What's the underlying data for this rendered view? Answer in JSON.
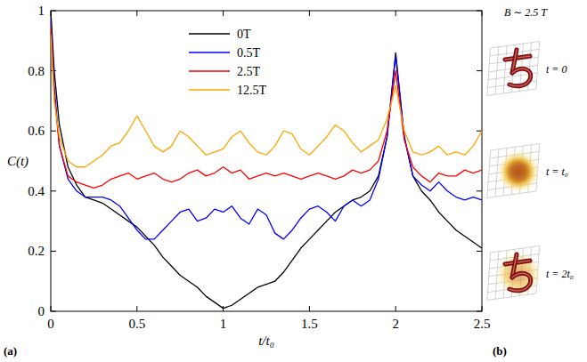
{
  "chart_data": {
    "type": "line",
    "x_label": "t/t₀",
    "y_label": "C(t)",
    "xlim": [
      0,
      2.5
    ],
    "ylim": [
      0,
      1
    ],
    "xticks": [
      0,
      0.5,
      1,
      1.5,
      2,
      2.5
    ],
    "yticks": [
      0,
      0.2,
      0.4,
      0.6,
      0.8,
      1
    ],
    "legend": "top",
    "x": [
      0,
      0.02,
      0.05,
      0.1,
      0.15,
      0.2,
      0.25,
      0.3,
      0.35,
      0.4,
      0.45,
      0.5,
      0.55,
      0.6,
      0.65,
      0.7,
      0.75,
      0.8,
      0.85,
      0.9,
      0.95,
      1.0,
      1.05,
      1.1,
      1.15,
      1.2,
      1.25,
      1.3,
      1.35,
      1.4,
      1.45,
      1.5,
      1.55,
      1.6,
      1.65,
      1.7,
      1.75,
      1.8,
      1.85,
      1.9,
      1.95,
      2.0,
      2.05,
      2.1,
      2.15,
      2.2,
      2.25,
      2.3,
      2.35,
      2.4,
      2.45,
      2.5
    ],
    "series": [
      {
        "name": "0T",
        "color": "#000000",
        "values": [
          1.0,
          0.8,
          0.62,
          0.48,
          0.42,
          0.38,
          0.37,
          0.36,
          0.34,
          0.32,
          0.3,
          0.28,
          0.25,
          0.22,
          0.18,
          0.15,
          0.12,
          0.1,
          0.08,
          0.05,
          0.03,
          0.01,
          0.02,
          0.04,
          0.06,
          0.08,
          0.09,
          0.1,
          0.13,
          0.17,
          0.21,
          0.24,
          0.27,
          0.3,
          0.33,
          0.35,
          0.37,
          0.38,
          0.4,
          0.45,
          0.58,
          0.86,
          0.58,
          0.45,
          0.4,
          0.37,
          0.33,
          0.3,
          0.27,
          0.25,
          0.23,
          0.21
        ]
      },
      {
        "name": "0.5T",
        "color": "#0000ff",
        "values": [
          0.97,
          0.75,
          0.55,
          0.44,
          0.4,
          0.38,
          0.38,
          0.38,
          0.37,
          0.35,
          0.31,
          0.27,
          0.24,
          0.24,
          0.27,
          0.3,
          0.33,
          0.34,
          0.3,
          0.31,
          0.34,
          0.33,
          0.35,
          0.31,
          0.29,
          0.34,
          0.32,
          0.26,
          0.24,
          0.27,
          0.31,
          0.34,
          0.35,
          0.33,
          0.3,
          0.35,
          0.37,
          0.35,
          0.37,
          0.44,
          0.58,
          0.85,
          0.58,
          0.45,
          0.42,
          0.4,
          0.43,
          0.4,
          0.38,
          0.37,
          0.38,
          0.37
        ]
      },
      {
        "name": "2.5T",
        "color": "#ff0000",
        "values": [
          0.95,
          0.72,
          0.55,
          0.45,
          0.43,
          0.42,
          0.41,
          0.42,
          0.44,
          0.45,
          0.46,
          0.44,
          0.45,
          0.46,
          0.44,
          0.43,
          0.44,
          0.46,
          0.47,
          0.45,
          0.46,
          0.48,
          0.46,
          0.47,
          0.44,
          0.45,
          0.46,
          0.45,
          0.46,
          0.45,
          0.44,
          0.45,
          0.46,
          0.45,
          0.44,
          0.45,
          0.47,
          0.46,
          0.47,
          0.5,
          0.6,
          0.8,
          0.57,
          0.48,
          0.45,
          0.43,
          0.46,
          0.45,
          0.45,
          0.47,
          0.46,
          0.47
        ]
      },
      {
        "name": "12.5T",
        "color": "#ffa500",
        "values": [
          0.92,
          0.7,
          0.58,
          0.5,
          0.48,
          0.48,
          0.5,
          0.52,
          0.55,
          0.56,
          0.6,
          0.65,
          0.6,
          0.55,
          0.53,
          0.55,
          0.6,
          0.58,
          0.55,
          0.52,
          0.53,
          0.54,
          0.58,
          0.6,
          0.56,
          0.53,
          0.52,
          0.55,
          0.6,
          0.59,
          0.54,
          0.52,
          0.55,
          0.58,
          0.62,
          0.6,
          0.56,
          0.53,
          0.55,
          0.57,
          0.64,
          0.75,
          0.6,
          0.53,
          0.52,
          0.53,
          0.55,
          0.52,
          0.53,
          0.52,
          0.55,
          0.6
        ]
      }
    ]
  },
  "panels": {
    "a": "(a)",
    "b": "(b)"
  },
  "snapshots": {
    "title": "B ∼ 2.5 T",
    "frames": [
      "t = 0",
      "t = t₀",
      "t = 2t₀"
    ]
  }
}
